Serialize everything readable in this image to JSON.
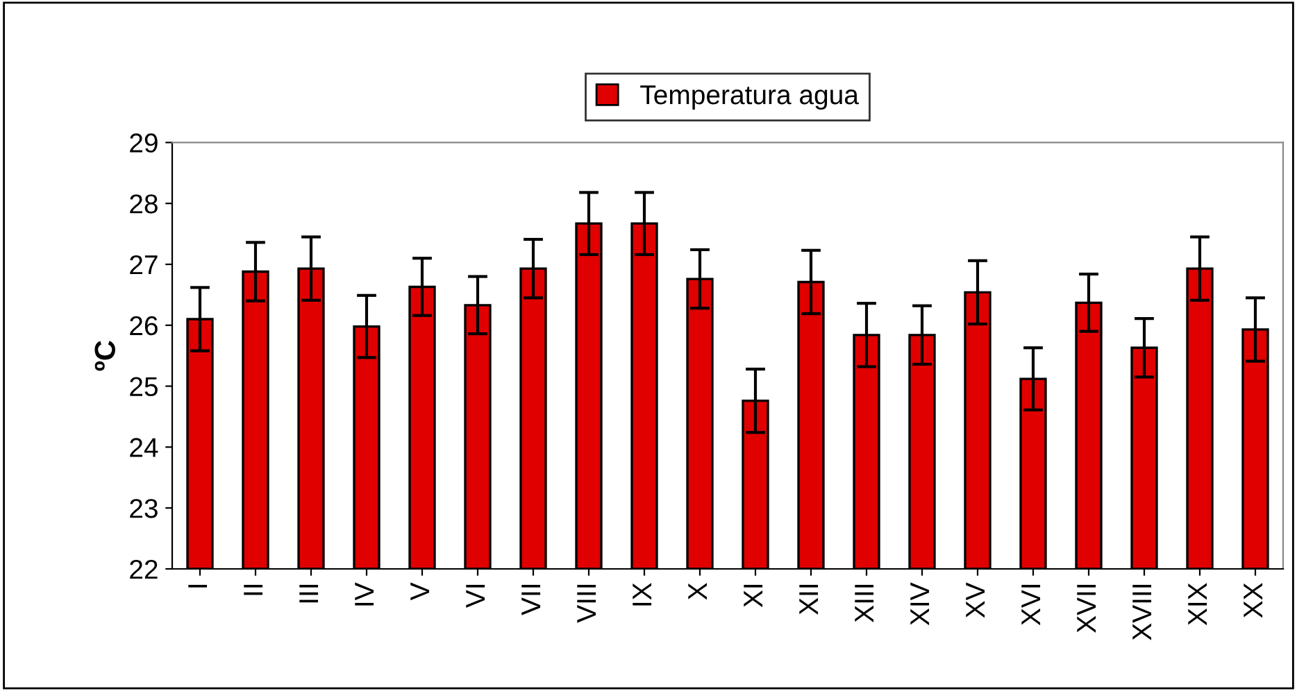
{
  "chart_data": {
    "type": "bar",
    "ylabel": "ºC",
    "categories": [
      "I",
      "II",
      "III",
      "IV",
      "V",
      "VI",
      "VII",
      "VIII",
      "IX",
      "X",
      "XI",
      "XII",
      "XIII",
      "XIV",
      "XV",
      "XVI",
      "XVII",
      "XVIII",
      "XIX",
      "XX"
    ],
    "series": [
      {
        "name": "Temperatura agua",
        "color": "#e00000",
        "values": [
          26.1,
          26.88,
          26.93,
          25.98,
          26.63,
          26.33,
          26.93,
          27.67,
          27.67,
          26.76,
          24.76,
          26.71,
          25.84,
          25.84,
          26.54,
          25.12,
          26.37,
          25.63,
          26.93,
          25.93
        ],
        "errors": [
          0.52,
          0.48,
          0.52,
          0.51,
          0.47,
          0.47,
          0.48,
          0.51,
          0.51,
          0.48,
          0.52,
          0.52,
          0.52,
          0.48,
          0.52,
          0.51,
          0.47,
          0.48,
          0.52,
          0.52
        ]
      }
    ],
    "ylim": [
      22,
      29
    ],
    "yticks": [
      22,
      23,
      24,
      25,
      26,
      27,
      28,
      29
    ],
    "grid": false,
    "legend": "top"
  }
}
